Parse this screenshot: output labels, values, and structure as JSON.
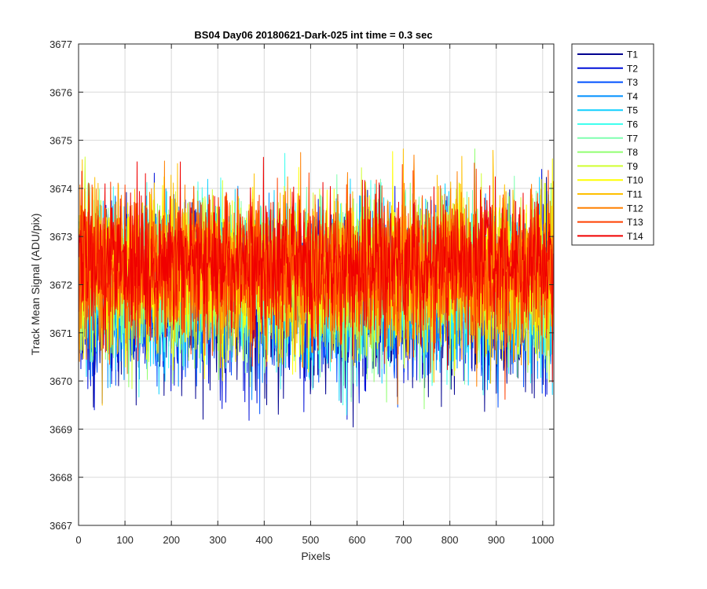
{
  "chart_data": {
    "type": "line",
    "title": "BS04 Day06 20180621-Dark-025 int time = 0.3 sec",
    "xlabel": "Pixels",
    "ylabel": "Track Mean Signal (ADU/pix)",
    "xlim": [
      0,
      1024
    ],
    "ylim": [
      3667,
      3677
    ],
    "xticks": [
      0,
      100,
      200,
      300,
      400,
      500,
      600,
      700,
      800,
      900,
      1000
    ],
    "yticks": [
      3667,
      3668,
      3669,
      3670,
      3671,
      3672,
      3673,
      3674,
      3675,
      3676,
      3677
    ],
    "grid": true,
    "legend_position": "outside-right",
    "n_points": 1024,
    "series": [
      {
        "name": "T1",
        "color": "#00008f",
        "mean": 3671.6,
        "std": 0.85,
        "seed": 11
      },
      {
        "name": "T2",
        "color": "#0010d9",
        "mean": 3671.7,
        "std": 0.85,
        "seed": 23
      },
      {
        "name": "T3",
        "color": "#0050ff",
        "mean": 3671.8,
        "std": 0.8,
        "seed": 37
      },
      {
        "name": "T4",
        "color": "#0090ff",
        "mean": 3671.9,
        "std": 0.8,
        "seed": 41
      },
      {
        "name": "T5",
        "color": "#10d0ff",
        "mean": 3672.0,
        "std": 0.8,
        "seed": 53
      },
      {
        "name": "T6",
        "color": "#40ffef",
        "mean": 3672.0,
        "std": 0.8,
        "seed": 67
      },
      {
        "name": "T7",
        "color": "#80ffaf",
        "mean": 3672.1,
        "std": 0.8,
        "seed": 71
      },
      {
        "name": "T8",
        "color": "#90ff70",
        "mean": 3672.1,
        "std": 0.8,
        "seed": 83
      },
      {
        "name": "T9",
        "color": "#d0ff30",
        "mean": 3672.2,
        "std": 0.8,
        "seed": 97
      },
      {
        "name": "T10",
        "color": "#ffff00",
        "mean": 3672.2,
        "std": 0.8,
        "seed": 101
      },
      {
        "name": "T11",
        "color": "#ffc000",
        "mean": 3672.3,
        "std": 0.8,
        "seed": 113
      },
      {
        "name": "T12",
        "color": "#ff8000",
        "mean": 3672.3,
        "std": 0.8,
        "seed": 127
      },
      {
        "name": "T13",
        "color": "#ff4000",
        "mean": 3672.3,
        "std": 0.75,
        "seed": 131
      },
      {
        "name": "T14",
        "color": "#f00000",
        "mean": 3672.4,
        "std": 0.75,
        "seed": 149
      }
    ]
  }
}
